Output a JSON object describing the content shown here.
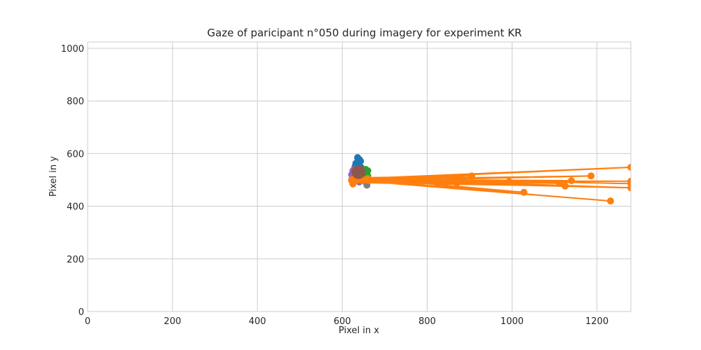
{
  "chart_data": {
    "type": "scatter",
    "title": "Gaze of paricipant n°050 during imagery for experiment KR",
    "xlabel": "Pixel in x",
    "ylabel": "Pixel in y",
    "xlim": [
      0,
      1280
    ],
    "ylim": [
      0,
      1024
    ],
    "xticks": [
      0,
      200,
      400,
      600,
      800,
      1000,
      1200
    ],
    "yticks": [
      0,
      200,
      400,
      600,
      800,
      1000
    ],
    "grid": true,
    "legend": "none",
    "series": [
      {
        "color": "#1f77b4",
        "mode": "markers+lines",
        "points": [
          [
            636,
            585
          ],
          [
            640,
            578
          ],
          [
            643,
            571
          ],
          [
            632,
            563
          ],
          [
            638,
            556
          ],
          [
            630,
            550
          ],
          [
            644,
            548
          ],
          [
            636,
            542
          ],
          [
            640,
            536
          ],
          [
            648,
            530
          ],
          [
            634,
            528
          ]
        ]
      },
      {
        "color": "#7f7f7f",
        "mode": "markers+lines",
        "points": [
          [
            658,
            480
          ],
          [
            655,
            492
          ],
          [
            650,
            500
          ],
          [
            646,
            506
          ]
        ]
      },
      {
        "color": "#2ca02c",
        "mode": "markers+lines",
        "points": [
          [
            655,
            540
          ],
          [
            660,
            535
          ],
          [
            652,
            528
          ],
          [
            648,
            520
          ],
          [
            660,
            515
          ],
          [
            645,
            510
          ],
          [
            655,
            505
          ],
          [
            642,
            512
          ],
          [
            650,
            525
          ]
        ]
      },
      {
        "color": "#9467bd",
        "mode": "markers+lines",
        "points": [
          [
            622,
            520
          ],
          [
            630,
            528
          ],
          [
            625,
            535
          ],
          [
            640,
            492
          ],
          [
            635,
            500
          ],
          [
            628,
            540
          ],
          [
            645,
            538
          ]
        ]
      },
      {
        "color": "#8c564b",
        "mode": "markers+lines",
        "points": [
          [
            638,
            530
          ],
          [
            642,
            528
          ],
          [
            635,
            525
          ],
          [
            640,
            532
          ],
          [
            644,
            526
          ]
        ]
      },
      {
        "color": "#ff7f0e",
        "mode": "markers+lines",
        "points": [
          [
            640,
            505
          ],
          [
            1280,
            548
          ],
          [
            622,
            500
          ],
          [
            1232,
            420
          ],
          [
            628,
            498
          ],
          [
            1028,
            453
          ],
          [
            660,
            505
          ],
          [
            1280,
            470
          ],
          [
            625,
            495
          ],
          [
            1186,
            515
          ],
          [
            630,
            502
          ],
          [
            1140,
            497
          ],
          [
            626,
            490
          ],
          [
            1125,
            477
          ],
          [
            632,
            500
          ],
          [
            1112,
            487
          ],
          [
            640,
            508
          ],
          [
            905,
            515
          ],
          [
            630,
            495
          ],
          [
            825,
            487
          ],
          [
            636,
            500
          ],
          [
            870,
            488
          ],
          [
            650,
            500
          ],
          [
            993,
            493
          ],
          [
            628,
            505
          ],
          [
            875,
            500
          ],
          [
            1280,
            486
          ],
          [
            1280,
            495
          ],
          [
            622,
            498
          ],
          [
            625,
            485
          ],
          [
            640,
            505
          ]
        ]
      }
    ]
  }
}
